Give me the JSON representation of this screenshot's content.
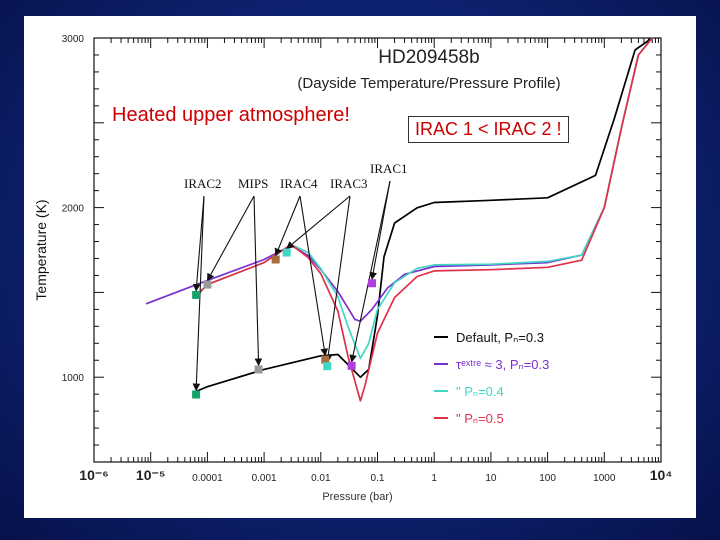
{
  "callouts": {
    "heated": "Heated upper atmosphere!",
    "irac_compare": "IRAC 1 < IRAC 2 !"
  },
  "chart_data": {
    "type": "line",
    "title": "HD209458b",
    "subtitle": "(Dayside Temperature/Pressure Profile)",
    "xlabel": "Pressure (bar)",
    "ylabel": "Temperature (K)",
    "xscale": "log",
    "xlim": [
      1e-06,
      10000
    ],
    "ylim": [
      500,
      3000
    ],
    "grid": false,
    "legend_position": "bottom-right",
    "x_ticks": [
      {
        "value": 1e-06,
        "label": "10⁻⁶",
        "big": true
      },
      {
        "value": 1e-05,
        "label": "10⁻⁵",
        "big": true
      },
      {
        "value": 0.0001,
        "label": "0.0001",
        "big": false
      },
      {
        "value": 0.001,
        "label": "0.001",
        "big": false
      },
      {
        "value": 0.01,
        "label": "0.01",
        "big": false
      },
      {
        "value": 0.1,
        "label": "0.1",
        "big": false
      },
      {
        "value": 1,
        "label": "1",
        "big": false
      },
      {
        "value": 10,
        "label": "10",
        "big": false
      },
      {
        "value": 100,
        "label": "100",
        "big": false
      },
      {
        "value": 1000,
        "label": "1000",
        "big": false
      },
      {
        "value": 10000,
        "label": "10⁴",
        "big": true
      }
    ],
    "y_ticks": [
      {
        "value": 1000,
        "label": "1000"
      },
      {
        "value": 2000,
        "label": "2000"
      },
      {
        "value": 3000,
        "label": "3000"
      }
    ],
    "series": [
      {
        "name": "Default, Pₙ=0.3",
        "color": "#000000",
        "points": [
          [
            6.32e-05,
            916
          ],
          [
            0.0001,
            944
          ],
          [
            0.001,
            1046
          ],
          [
            0.01,
            1126
          ],
          [
            0.02,
            1134
          ],
          [
            0.03,
            1075
          ],
          [
            0.05,
            1000
          ],
          [
            0.07,
            1046
          ],
          [
            0.1,
            1363
          ],
          [
            0.13,
            1710
          ],
          [
            0.2,
            1909
          ],
          [
            0.5,
            1999
          ],
          [
            1,
            2030
          ],
          [
            10,
            2043
          ],
          [
            100,
            2058
          ],
          [
            700,
            2190
          ],
          [
            1500,
            2525
          ],
          [
            3500,
            2930
          ],
          [
            7000,
            3000
          ]
        ]
      },
      {
        "name": "τextre ≈ 3, Pₙ=0.3",
        "color": "#7b2fd0",
        "points": [
          [
            8.3e-06,
            1433
          ],
          [
            0.0001,
            1571
          ],
          [
            0.001,
            1694
          ],
          [
            0.003,
            1777
          ],
          [
            0.006,
            1717
          ],
          [
            0.01,
            1635
          ],
          [
            0.02,
            1505
          ],
          [
            0.04,
            1341
          ],
          [
            0.05,
            1330
          ],
          [
            0.08,
            1400
          ],
          [
            0.15,
            1526
          ],
          [
            0.3,
            1607
          ],
          [
            1,
            1653
          ],
          [
            10,
            1662
          ],
          [
            100,
            1676
          ],
          [
            400,
            1720
          ],
          [
            1000,
            2000
          ],
          [
            2000,
            2470
          ],
          [
            4000,
            2900
          ],
          [
            7000,
            3000
          ]
        ]
      },
      {
        "name": "Pₙ=0.4",
        "color": "#3fd8c2",
        "points": [
          [
            6.32e-05,
            1485
          ],
          [
            0.0001,
            1546
          ],
          [
            0.001,
            1676
          ],
          [
            0.003,
            1782
          ],
          [
            0.006,
            1735
          ],
          [
            0.01,
            1640
          ],
          [
            0.02,
            1475
          ],
          [
            0.03,
            1300
          ],
          [
            0.05,
            1110
          ],
          [
            0.07,
            1200
          ],
          [
            0.1,
            1400
          ],
          [
            0.2,
            1557
          ],
          [
            0.5,
            1642
          ],
          [
            1,
            1662
          ],
          [
            10,
            1666
          ],
          [
            100,
            1683
          ],
          [
            400,
            1720
          ],
          [
            1000,
            2000
          ],
          [
            2000,
            2470
          ],
          [
            4000,
            2900
          ],
          [
            7000,
            3000
          ]
        ]
      },
      {
        "name": "Pₙ=0.5",
        "color": "#e0304a",
        "points": [
          [
            6.32e-05,
            1475
          ],
          [
            0.0001,
            1546
          ],
          [
            0.001,
            1676
          ],
          [
            0.003,
            1782
          ],
          [
            0.006,
            1705
          ],
          [
            0.01,
            1610
          ],
          [
            0.02,
            1390
          ],
          [
            0.03,
            1125
          ],
          [
            0.05,
            860
          ],
          [
            0.06,
            950
          ],
          [
            0.1,
            1260
          ],
          [
            0.2,
            1470
          ],
          [
            0.5,
            1594
          ],
          [
            1,
            1627
          ],
          [
            10,
            1634
          ],
          [
            100,
            1648
          ],
          [
            400,
            1690
          ],
          [
            1000,
            2000
          ],
          [
            2000,
            2470
          ],
          [
            4000,
            2900
          ],
          [
            7000,
            3000
          ]
        ]
      }
    ],
    "markers": [
      {
        "band": "IRAC2",
        "x": 6.32e-05,
        "y": 1485,
        "color": "#16a36a"
      },
      {
        "band": "IRAC2",
        "x": 6.32e-05,
        "y": 898,
        "color": "#16a36a"
      },
      {
        "band": "MIPS",
        "x": 0.0001,
        "y": 1546,
        "color": "#9a9a9a"
      },
      {
        "band": "MIPS",
        "x": 0.0008,
        "y": 1046,
        "color": "#9a9a9a"
      },
      {
        "band": "IRAC4",
        "x": 0.0016,
        "y": 1694,
        "color": "#a86b3c"
      },
      {
        "band": "IRAC4",
        "x": 0.012,
        "y": 1104,
        "color": "#a86b3c"
      },
      {
        "band": "IRAC3",
        "x": 0.0025,
        "y": 1735,
        "color": "#3fd8c2"
      },
      {
        "band": "IRAC3",
        "x": 0.013,
        "y": 1065,
        "color": "#3fd8c2"
      },
      {
        "band": "IRAC1",
        "x": 0.08,
        "y": 1554,
        "color": "#b03de0"
      },
      {
        "band": "IRAC1",
        "x": 0.035,
        "y": 1067,
        "color": "#b03de0"
      }
    ],
    "band_labels": [
      "IRAC2",
      "MIPS",
      "IRAC4",
      "IRAC3",
      "IRAC1"
    ],
    "arrows": [
      {
        "from": "IRAC2",
        "to": [
          0,
          1
        ]
      },
      {
        "from": "MIPS",
        "to": [
          2,
          3
        ]
      },
      {
        "from": "IRAC4",
        "to": [
          4,
          5
        ]
      },
      {
        "from": "IRAC3",
        "to": [
          6,
          7
        ]
      },
      {
        "from": "IRAC1",
        "to": [
          8,
          9
        ]
      }
    ],
    "legend": [
      {
        "text": "Default,  Pₙ=0.3",
        "color": "#000000"
      },
      {
        "text": "τᵉˣᵗʳᵉ ≈ 3,  Pₙ=0.3",
        "color": "#7b2fd0"
      },
      {
        "text": "\"     Pₙ=0.4",
        "color": "#3fd8c2"
      },
      {
        "text": "\"     Pₙ=0.5",
        "color": "#e0304a"
      }
    ]
  }
}
